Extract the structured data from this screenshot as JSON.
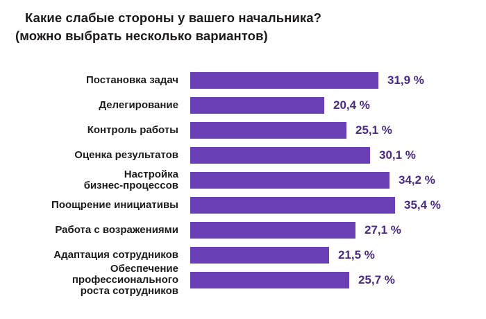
{
  "title": {
    "line1": "Какие слабые стороны у вашего начальника?",
    "line2": "(можно выбрать несколько вариантов)"
  },
  "colors": {
    "bar_fill": "#6a3fb5",
    "value_text": "#4b2a82",
    "label_text": "#1d1b1b",
    "title_text": "#1c1a1a",
    "background": "#ffffff"
  },
  "chart_data": {
    "type": "bar",
    "orientation": "horizontal",
    "title": "Какие слабые стороны у вашего начальника? (можно выбрать несколько вариантов)",
    "categories": [
      "Постановка задач",
      "Делегирование",
      "Контроль работы",
      "Оценка результатов",
      "Настройка\nбизнес-процессов",
      "Поощрение инициативы",
      "Работа с возражениями",
      "Адаптация сотрудников",
      "Обеспечение\nпрофессионального\nроста сотрудников"
    ],
    "values": [
      31.9,
      20.4,
      25.1,
      30.1,
      34.2,
      35.4,
      27.1,
      21.5,
      25.7
    ],
    "value_labels": [
      "31,9 %",
      "20,4 %",
      "25,1 %",
      "30,1 %",
      "34,2 %",
      "35,4 %",
      "27,1 %",
      "21,5 %",
      "25,7 %"
    ],
    "xlabel": "",
    "ylabel": "",
    "xlim": [
      0,
      40
    ],
    "grid": false,
    "legend": "none",
    "value_label_position": "right-of-bar"
  }
}
